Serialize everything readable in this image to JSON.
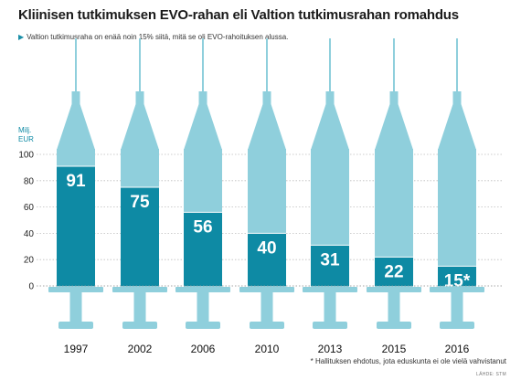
{
  "header": {
    "title": "Kliinisen tutkimuksen EVO-rahan eli Valtion tutkimusrahan romahdus",
    "subtitle": "Valtion tutkimusraha on enää noin 15% siitä, mitä se oli EVO-rahoituksen alussa."
  },
  "footer": {
    "footnote": "* Hallituksen ehdotus, jota eduskunta ei ole vielä vahvistanut",
    "source": "LÄHDE: STM"
  },
  "colors": {
    "barrel_light": "#8fcfdc",
    "fill_dark": "#0e8aa4",
    "text_dark": "#1a1a1a"
  },
  "chart_data": {
    "type": "bar",
    "title": "Kliinisen tutkimuksen EVO-rahan eli Valtion tutkimusrahan romahdus",
    "ylabel": "Milj. EUR",
    "ylim": [
      0,
      100
    ],
    "yticks": [
      0,
      20,
      40,
      60,
      80,
      100
    ],
    "categories": [
      "1997",
      "2002",
      "2006",
      "2010",
      "2013",
      "2015",
      "2016"
    ],
    "values": [
      91,
      75,
      56,
      40,
      31,
      22,
      15
    ],
    "value_labels": [
      "91",
      "75",
      "56",
      "40",
      "31",
      "22",
      "15*"
    ],
    "style": "syringe"
  }
}
